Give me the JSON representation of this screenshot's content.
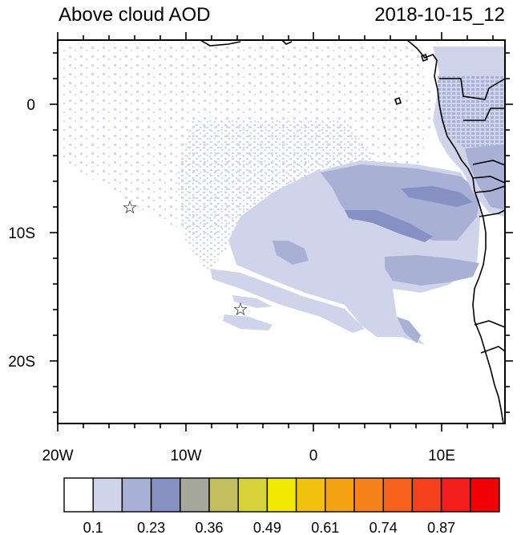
{
  "title": "Above cloud AOD",
  "timestamp": "2018-10-15_12",
  "map": {
    "lat_labels": [
      {
        "value": 0,
        "label": "0"
      },
      {
        "value": -10,
        "label": "10S"
      },
      {
        "value": -20,
        "label": "20S"
      }
    ],
    "lon_labels": [
      {
        "value": -20,
        "label": "20W"
      },
      {
        "value": -10,
        "label": "10W"
      },
      {
        "value": 0,
        "label": "0"
      },
      {
        "value": 10,
        "label": "10E"
      }
    ],
    "lon_range": [
      -20,
      15
    ],
    "lat_range": [
      -25,
      5
    ],
    "markers": [
      {
        "name": "star-marker-1",
        "lon": -14.4,
        "lat": -8.0,
        "symbol": "☆"
      },
      {
        "name": "star-marker-2",
        "lon": -5.8,
        "lat": -16.0,
        "symbol": "☆"
      }
    ]
  },
  "colorbar": {
    "colors": [
      "#ffffff",
      "#d0d4ea",
      "#a9b0d6",
      "#8690c2",
      "#a5a89a",
      "#c3bf5e",
      "#d8d23a",
      "#f0ea00",
      "#f2c10e",
      "#f4a312",
      "#f5821a",
      "#f6621c",
      "#f6421c",
      "#f41e1c",
      "#f20008"
    ],
    "labels": [
      "0.1",
      "0.23",
      "0.36",
      "0.49",
      "0.61",
      "0.74",
      "0.87"
    ]
  }
}
